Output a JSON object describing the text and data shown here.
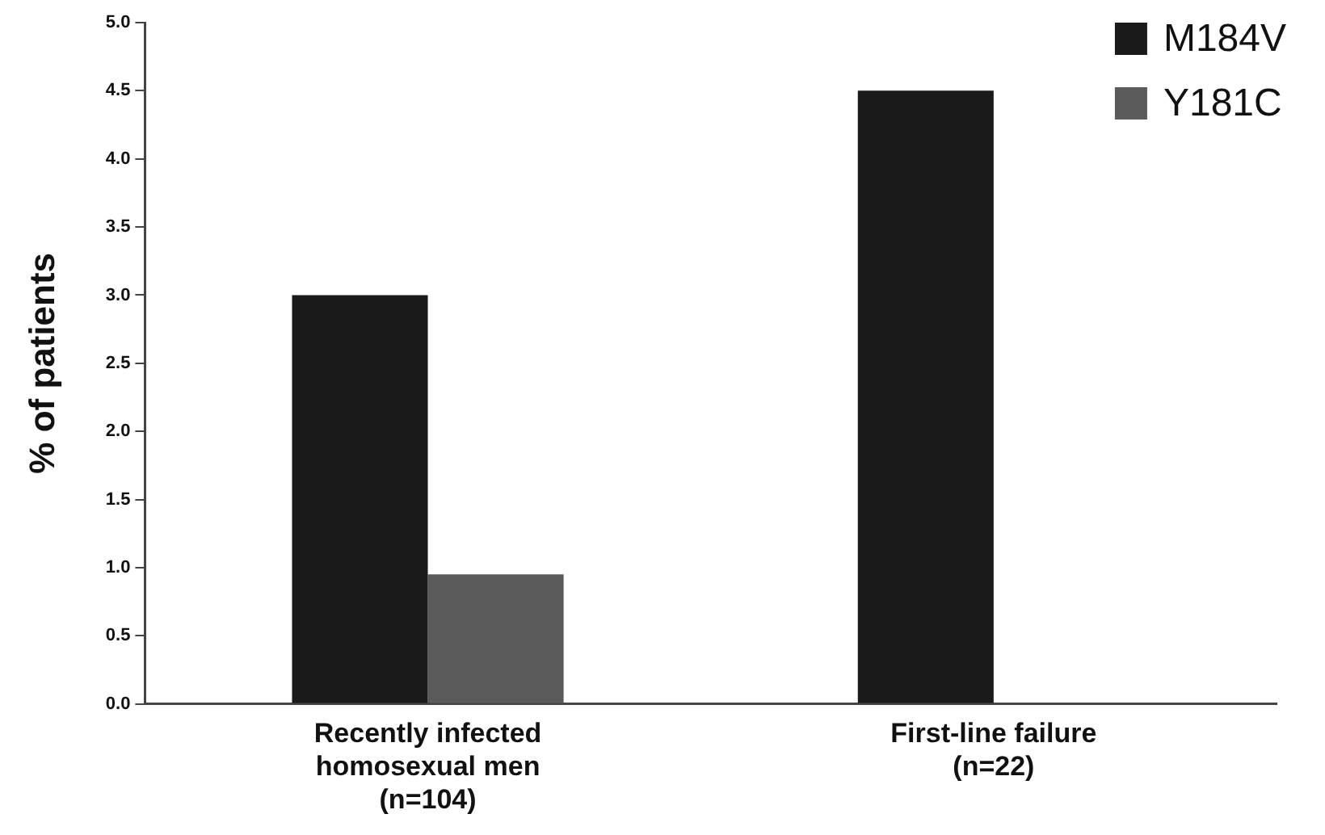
{
  "chart_data": {
    "type": "bar",
    "ylabel": "% of patients",
    "categories": [
      "Recently infected\nhomosexual men\n(n=104)",
      "First-line failure\n(n=22)"
    ],
    "series": [
      {
        "name": "M184V",
        "color": "#1a1a1a",
        "values": [
          3.0,
          4.5
        ]
      },
      {
        "name": "Y181C",
        "color": "#5a5a5a",
        "values": [
          0.95,
          0
        ]
      }
    ],
    "ylim": [
      0,
      5
    ],
    "yticks": [
      {
        "value": 0,
        "label": "0.0"
      },
      {
        "value": 0.5,
        "label": "0.5"
      },
      {
        "value": 1,
        "label": "1.0"
      },
      {
        "value": 1.5,
        "label": "1.5"
      },
      {
        "value": 2,
        "label": "2.0"
      },
      {
        "value": 2.5,
        "label": "2.5"
      },
      {
        "value": 3,
        "label": "3.0"
      },
      {
        "value": 3.5,
        "label": "3.5"
      },
      {
        "value": 4,
        "label": "4.0"
      },
      {
        "value": 4.5,
        "label": "4.5"
      },
      {
        "value": 5,
        "label": "5.0"
      }
    ],
    "grid": false,
    "legend": "top right"
  }
}
